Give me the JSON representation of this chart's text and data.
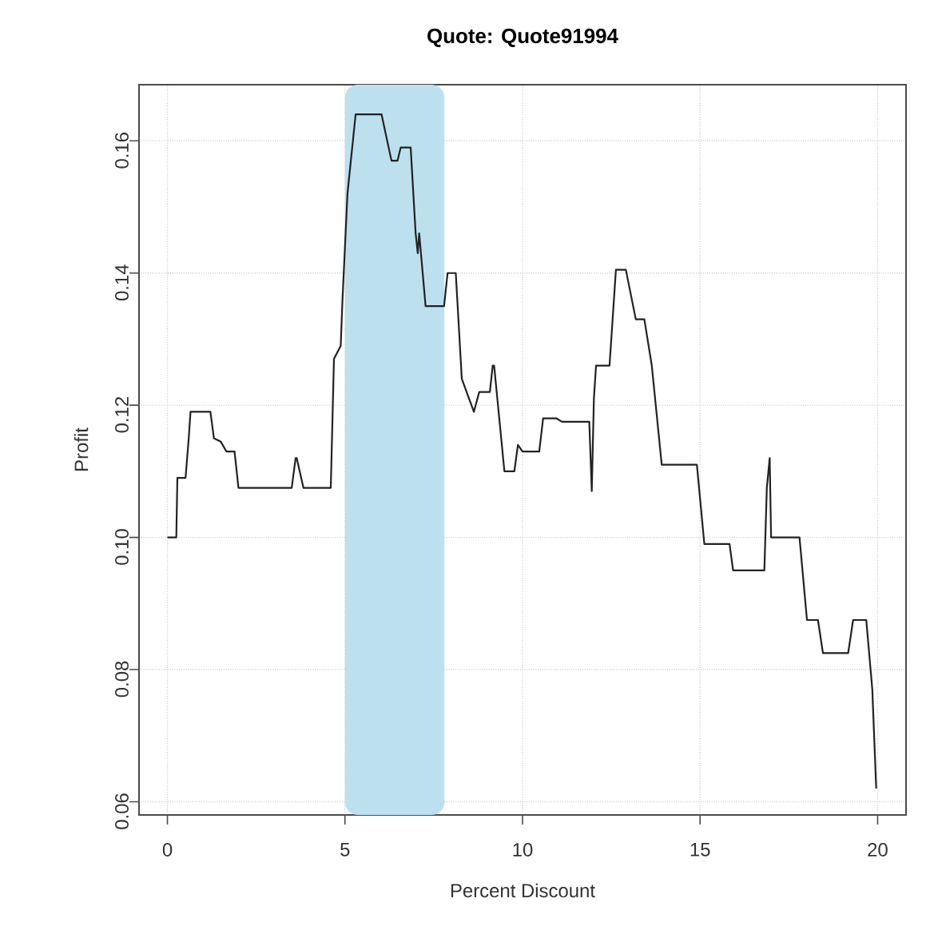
{
  "chart_data": {
    "type": "step",
    "title": "Quote: Quote91994",
    "xlabel": "Percent Discount",
    "ylabel": "Profit",
    "xlim": [
      -0.8,
      20.8
    ],
    "ylim": [
      0.058,
      0.1685
    ],
    "xticks": [
      0,
      5,
      10,
      15,
      20
    ],
    "yticks": [
      0.06,
      0.08,
      {
        "value": 0.1,
        "label": "0.10"
      },
      0.12,
      0.14,
      0.16
    ],
    "grid": true,
    "line_style": "solid",
    "bands": [
      {
        "axis": "x",
        "from": 5.0,
        "to": 7.8,
        "color": "#bde0ef"
      }
    ],
    "series": [
      {
        "color": "#222222",
        "x": [
          0,
          0.25,
          0.28,
          0.51,
          0.6,
          0.65,
          1.21,
          1.31,
          1.5,
          1.66,
          1.89,
          2.0,
          3.5,
          3.61,
          3.64,
          3.83,
          4.6,
          4.69,
          4.88,
          4.93,
          5.07,
          5.3,
          6.03,
          6.31,
          6.48,
          6.57,
          6.85,
          6.99,
          7.05,
          7.09,
          7.27,
          7.79,
          7.89,
          8.12,
          8.29,
          8.63,
          8.78,
          9.08,
          9.16,
          9.2,
          9.49,
          9.77,
          9.87,
          10.0,
          10.15,
          10.47,
          10.58,
          10.96,
          11.11,
          11.88,
          11.95,
          12.01,
          12.07,
          12.45,
          12.63,
          12.91,
          13.19,
          13.43,
          13.64,
          13.92,
          14.91,
          15.12,
          15.83,
          15.93,
          16.81,
          16.88,
          16.96,
          17.0,
          17.8,
          18.01,
          18.32,
          18.46,
          19.17,
          19.31,
          19.68,
          19.85,
          19.96
        ],
        "values": [
          0.1,
          0.1,
          0.109,
          0.109,
          0.115,
          0.119,
          0.119,
          0.115,
          0.1145,
          0.113,
          0.113,
          0.1075,
          0.1075,
          0.112,
          0.112,
          0.1075,
          0.1075,
          0.127,
          0.129,
          0.136,
          0.152,
          0.164,
          0.164,
          0.157,
          0.157,
          0.159,
          0.159,
          0.146,
          0.143,
          0.146,
          0.135,
          0.135,
          0.14,
          0.14,
          0.124,
          0.119,
          0.122,
          0.122,
          0.126,
          0.126,
          0.11,
          0.11,
          0.114,
          0.113,
          0.113,
          0.113,
          0.118,
          0.118,
          0.1175,
          0.1175,
          0.107,
          0.121,
          0.126,
          0.126,
          0.1405,
          0.1405,
          0.133,
          0.133,
          0.126,
          0.111,
          0.111,
          0.099,
          0.099,
          0.095,
          0.095,
          0.1075,
          0.112,
          0.1,
          0.1,
          0.0875,
          0.0875,
          0.0825,
          0.0825,
          0.0875,
          0.0875,
          0.077,
          0.062
        ]
      }
    ]
  }
}
